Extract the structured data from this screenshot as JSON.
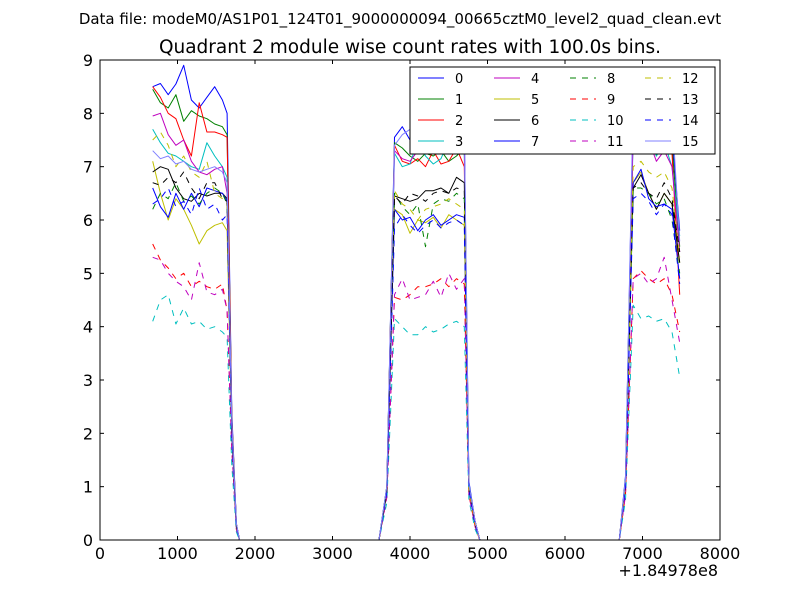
{
  "figure": {
    "suptitle": "Data file: modeM0/AS1P01_124T01_9000000094_00665cztM0_level2_quad_clean.evt"
  },
  "chart_data": {
    "type": "line",
    "title": "Quadrant 2 module wise count rates with 100.0s bins.",
    "xlabel": "",
    "ylabel": "",
    "xlim": [
      0,
      8000
    ],
    "ylim": [
      0,
      9
    ],
    "x_offset_label": "+1.84978e8",
    "x_ticks": [
      0,
      1000,
      2000,
      3000,
      4000,
      5000,
      6000,
      7000,
      8000
    ],
    "x_tick_labels": [
      "0",
      "1000",
      "2000",
      "3000",
      "4000",
      "5000",
      "6000",
      "7000",
      "8000"
    ],
    "y_ticks": [
      0,
      1,
      2,
      3,
      4,
      5,
      6,
      7,
      8,
      9
    ],
    "y_tick_labels": [
      "0",
      "1",
      "2",
      "3",
      "4",
      "5",
      "6",
      "7",
      "8",
      "9"
    ],
    "legend": {
      "placement": "top-right",
      "ncol": 4
    },
    "segments": [
      {
        "x": [
          680,
          780,
          880,
          980,
          1080,
          1180,
          1280,
          1380,
          1480,
          1580,
          1640
        ]
      },
      {
        "x": [
          3800,
          3900,
          4000,
          4100,
          4200,
          4300,
          4400,
          4500,
          4600,
          4700
        ]
      },
      {
        "x": [
          6880,
          6980,
          7080,
          7180,
          7280,
          7380,
          7480
        ]
      }
    ],
    "gap_x": [
      1700,
      1760,
      1800,
      2000,
      3000,
      3500,
      3600,
      3700,
      4760,
      4840,
      4900,
      5000,
      6000,
      6700,
      6780
    ],
    "series": [
      {
        "name": "0",
        "color": "#0000ff",
        "dash": "solid",
        "s": [
          [
            8.5,
            8.56,
            8.35,
            8.55,
            8.9,
            8.25,
            8.1,
            8.3,
            8.5,
            8.25,
            8.0
          ],
          [
            7.55,
            7.75,
            7.5,
            7.3,
            7.6,
            7.45,
            7.5,
            7.55,
            7.4,
            7.7
          ],
          [
            8.1,
            8.2,
            8.15,
            7.2,
            8.1,
            7.6,
            5.8
          ]
        ],
        "gap": [
          2.4,
          0.3,
          0,
          0,
          0,
          0,
          0,
          1.0,
          1.1,
          0.35,
          0,
          0,
          0,
          0,
          1.2
        ]
      },
      {
        "name": "1",
        "color": "#008000",
        "dash": "solid",
        "s": [
          [
            8.45,
            8.2,
            8.1,
            8.35,
            7.85,
            8.05,
            7.95,
            7.9,
            7.8,
            7.75,
            7.6
          ],
          [
            7.45,
            7.35,
            7.2,
            7.1,
            7.25,
            7.2,
            7.3,
            7.1,
            7.2,
            7.35
          ],
          [
            7.9,
            8.0,
            7.85,
            7.2,
            7.6,
            7.4,
            5.5
          ]
        ],
        "gap": [
          2.3,
          0.3,
          0,
          0,
          0,
          0,
          0,
          1.0,
          1.05,
          0.35,
          0,
          0,
          0,
          0,
          1.15
        ]
      },
      {
        "name": "2",
        "color": "#ff0000",
        "dash": "solid",
        "s": [
          [
            8.5,
            8.3,
            8.0,
            7.9,
            7.5,
            7.2,
            8.2,
            7.65,
            7.65,
            7.6,
            7.55
          ],
          [
            7.4,
            7.1,
            7.05,
            7.15,
            7.0,
            7.3,
            7.05,
            7.1,
            7.35,
            7.0
          ],
          [
            7.7,
            7.55,
            7.6,
            7.3,
            7.4,
            7.25,
            4.6
          ]
        ],
        "gap": [
          2.3,
          0.3,
          0,
          0,
          0,
          0,
          0,
          0.95,
          1.0,
          0.35,
          0,
          0,
          0,
          0,
          1.1
        ]
      },
      {
        "name": "3",
        "color": "#00bfbf",
        "dash": "solid",
        "s": [
          [
            7.7,
            7.45,
            7.25,
            7.2,
            7.1,
            7.0,
            6.95,
            7.45,
            7.2,
            7.0,
            6.8
          ],
          [
            7.25,
            7.0,
            7.05,
            7.5,
            7.2,
            7.05,
            7.15,
            7.5,
            7.3,
            7.25
          ],
          [
            7.6,
            8.25,
            7.6,
            7.2,
            7.45,
            7.0,
            5.7
          ]
        ],
        "gap": [
          2.2,
          0.3,
          0,
          0,
          0,
          0,
          0,
          0.95,
          1.0,
          0.35,
          0,
          0,
          0,
          0,
          1.1
        ]
      },
      {
        "name": "4",
        "color": "#bf00bf",
        "dash": "solid",
        "s": [
          [
            7.95,
            8.0,
            7.6,
            7.4,
            7.5,
            7.1,
            6.9,
            6.85,
            6.95,
            7.0,
            6.5
          ],
          [
            7.3,
            7.15,
            7.1,
            7.3,
            7.4,
            7.25,
            7.55,
            7.65,
            7.55,
            7.45
          ],
          [
            7.7,
            7.75,
            7.5,
            7.1,
            7.3,
            7.0,
            5.4
          ]
        ],
        "gap": [
          2.2,
          0.3,
          0,
          0,
          0,
          0,
          0,
          0.95,
          1.0,
          0.35,
          0,
          0,
          0,
          0,
          1.1
        ]
      },
      {
        "name": "5",
        "color": "#bfbf00",
        "dash": "solid",
        "s": [
          [
            7.1,
            6.5,
            6.0,
            6.4,
            6.2,
            5.9,
            5.55,
            5.8,
            5.9,
            5.95,
            5.8
          ],
          [
            6.2,
            6.1,
            5.75,
            6.0,
            5.95,
            6.05,
            5.85,
            6.1,
            6.0,
            5.9
          ],
          [
            6.7,
            6.9,
            6.5,
            6.2,
            6.5,
            6.3,
            5.2
          ]
        ],
        "gap": [
          2.0,
          0.25,
          0,
          0,
          0,
          0,
          0,
          0.9,
          0.95,
          0.3,
          0,
          0,
          0,
          0,
          1.0
        ]
      },
      {
        "name": "6",
        "color": "#000000",
        "dash": "solid",
        "s": [
          [
            6.9,
            7.0,
            6.95,
            6.6,
            6.4,
            6.35,
            6.5,
            6.45,
            6.5,
            6.5,
            6.4
          ],
          [
            6.45,
            6.4,
            6.35,
            6.4,
            6.55,
            6.55,
            6.6,
            6.5,
            6.8,
            6.7
          ],
          [
            6.6,
            6.85,
            6.5,
            6.2,
            6.5,
            6.3,
            5.2
          ]
        ],
        "gap": [
          2.1,
          0.25,
          0,
          0,
          0,
          0,
          0,
          0.9,
          0.95,
          0.3,
          0,
          0,
          0,
          0,
          1.05
        ]
      },
      {
        "name": "7",
        "color": "#0000ff",
        "dash": "solid",
        "s": [
          [
            6.6,
            6.25,
            6.05,
            6.5,
            6.2,
            6.5,
            6.25,
            6.6,
            6.55,
            6.5,
            6.35
          ],
          [
            6.2,
            6.0,
            6.05,
            5.8,
            6.0,
            6.1,
            5.9,
            6.0,
            6.1,
            6.05
          ],
          [
            6.7,
            6.95,
            6.4,
            6.25,
            6.3,
            6.2,
            4.9
          ]
        ],
        "gap": [
          2.0,
          0.25,
          0,
          0,
          0,
          0,
          0,
          0.9,
          0.95,
          0.3,
          0,
          0,
          0,
          0,
          1.0
        ]
      },
      {
        "name": "8",
        "color": "#008000",
        "dash": "dashed",
        "s": [
          [
            6.2,
            6.5,
            6.4,
            6.7,
            6.35,
            6.45,
            6.3,
            6.5,
            6.6,
            6.5,
            6.3
          ],
          [
            6.5,
            6.25,
            6.1,
            6.3,
            5.5,
            6.3,
            6.4,
            6.35,
            6.5,
            6.4
          ],
          [
            6.6,
            6.6,
            6.5,
            6.3,
            6.4,
            6.0,
            5.0
          ]
        ],
        "gap": [
          2.0,
          0.25,
          0,
          0,
          0,
          0,
          0,
          0.9,
          0.95,
          0.3,
          0,
          0,
          0,
          0,
          1.0
        ]
      },
      {
        "name": "9",
        "color": "#ff0000",
        "dash": "dashed",
        "s": [
          [
            5.55,
            5.25,
            5.1,
            4.9,
            5.0,
            4.75,
            4.85,
            4.75,
            4.7,
            4.8,
            4.3
          ],
          [
            4.55,
            4.5,
            4.6,
            4.75,
            4.75,
            4.8,
            4.9,
            4.75,
            4.9,
            4.8
          ],
          [
            4.9,
            5.05,
            4.9,
            4.8,
            4.9,
            4.6,
            3.9
          ]
        ],
        "gap": [
          1.7,
          0.2,
          0,
          0,
          0,
          0,
          0,
          0.8,
          0.85,
          0.25,
          0,
          0,
          0,
          0,
          0.85
        ]
      },
      {
        "name": "10",
        "color": "#00bfbf",
        "dash": "dashed",
        "s": [
          [
            4.1,
            4.5,
            4.6,
            4.05,
            4.35,
            4.05,
            4.1,
            3.95,
            4.0,
            3.9,
            3.8
          ],
          [
            4.15,
            4.0,
            3.85,
            3.85,
            4.0,
            3.9,
            3.95,
            4.05,
            4.1,
            4.0
          ],
          [
            4.4,
            4.15,
            4.2,
            4.1,
            4.15,
            3.9,
            3.05
          ]
        ],
        "gap": [
          1.4,
          0.15,
          0,
          0,
          0,
          0,
          0,
          0.7,
          0.75,
          0.2,
          0,
          0,
          0,
          0,
          0.75
        ]
      },
      {
        "name": "11",
        "color": "#bf00bf",
        "dash": "dashed",
        "s": [
          [
            5.3,
            5.25,
            5.0,
            4.85,
            4.75,
            4.5,
            5.2,
            4.65,
            4.6,
            4.7,
            4.3
          ],
          [
            4.6,
            4.9,
            4.5,
            4.55,
            4.6,
            4.85,
            4.55,
            5.0,
            4.7,
            4.9
          ],
          [
            4.9,
            5.0,
            4.8,
            4.9,
            5.3,
            4.5,
            3.7
          ]
        ],
        "gap": [
          1.7,
          0.2,
          0,
          0,
          0,
          0,
          0,
          0.8,
          0.85,
          0.25,
          0,
          0,
          0,
          0,
          0.85
        ]
      },
      {
        "name": "12",
        "color": "#bfbf00",
        "dash": "dashed",
        "s": [
          [
            7.5,
            7.65,
            7.4,
            7.0,
            7.2,
            6.9,
            6.8,
            7.1,
            6.5,
            6.4,
            6.3
          ],
          [
            6.55,
            6.3,
            6.2,
            6.0,
            6.2,
            6.25,
            6.3,
            6.4,
            6.3,
            6.2
          ],
          [
            7.0,
            7.1,
            6.9,
            6.8,
            6.9,
            6.6,
            5.3
          ]
        ],
        "gap": [
          2.1,
          0.25,
          0,
          0,
          0,
          0,
          0,
          0.9,
          0.95,
          0.3,
          0,
          0,
          0,
          0,
          1.05
        ]
      },
      {
        "name": "13",
        "color": "#000000",
        "dash": "dashed",
        "s": [
          [
            6.7,
            6.65,
            6.8,
            6.7,
            6.9,
            6.6,
            6.4,
            6.7,
            6.7,
            6.4,
            6.35
          ],
          [
            6.45,
            6.3,
            6.5,
            6.45,
            6.35,
            6.5,
            6.55,
            6.5,
            6.6,
            6.55
          ],
          [
            6.6,
            6.7,
            6.5,
            6.4,
            6.7,
            6.4,
            5.4
          ]
        ],
        "gap": [
          2.05,
          0.25,
          0,
          0,
          0,
          0,
          0,
          0.9,
          0.95,
          0.3,
          0,
          0,
          0,
          0,
          1.05
        ]
      },
      {
        "name": "14",
        "color": "#0000ff",
        "dash": "dashed",
        "s": [
          [
            6.3,
            6.4,
            6.6,
            6.25,
            6.35,
            6.1,
            6.6,
            6.2,
            6.3,
            6.0,
            6.1
          ],
          [
            5.85,
            6.1,
            5.9,
            5.75,
            5.9,
            6.0,
            5.85,
            5.95,
            6.0,
            5.9
          ],
          [
            6.4,
            6.5,
            6.35,
            6.1,
            6.3,
            6.1,
            4.8
          ]
        ],
        "gap": [
          2.0,
          0.25,
          0,
          0,
          0,
          0,
          0,
          0.9,
          0.95,
          0.3,
          0,
          0,
          0,
          0,
          1.0
        ]
      },
      {
        "name": "15",
        "color": "#8080ff",
        "dash": "solid",
        "s": [
          [
            7.3,
            7.15,
            7.2,
            7.05,
            7.1,
            6.95,
            6.9,
            6.95,
            7.0,
            6.9,
            6.7
          ],
          [
            7.4,
            7.6,
            7.7,
            7.7,
            7.55,
            7.75,
            7.65,
            7.8,
            8.0,
            7.85
          ],
          [
            8.3,
            8.5,
            8.45,
            8.0,
            8.2,
            8.0,
            5.6
          ]
        ],
        "gap": [
          2.2,
          0.3,
          0,
          0,
          0,
          0,
          0,
          1.0,
          1.05,
          0.35,
          0,
          0,
          0,
          0,
          1.15
        ]
      }
    ]
  }
}
